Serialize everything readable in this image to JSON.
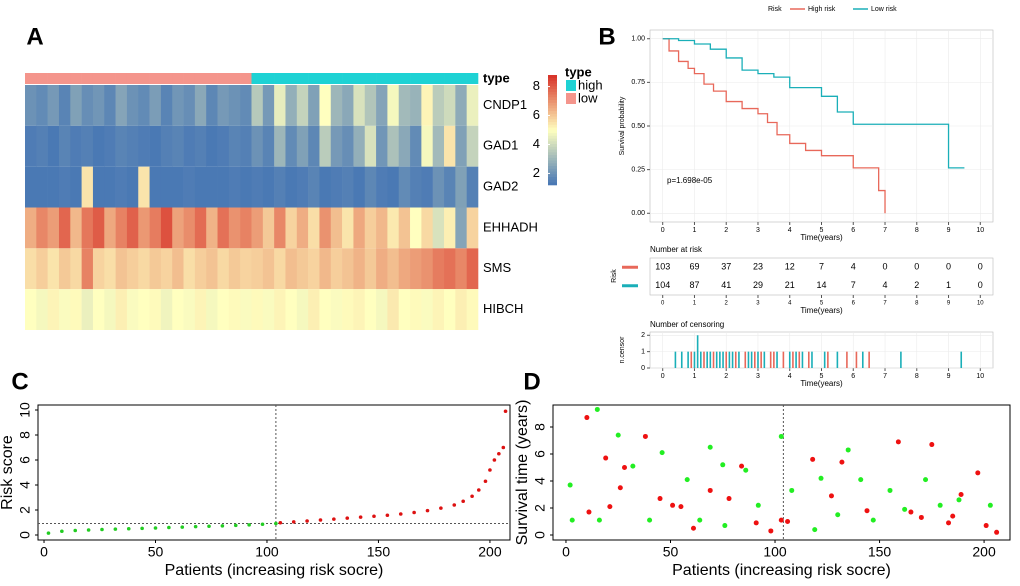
{
  "chart_data": [
    {
      "type": "heatmap",
      "panel": "A",
      "rows": [
        "CNDP1",
        "GAD1",
        "GAD2",
        "EHHADH",
        "SMS",
        "HIBCH"
      ],
      "values": [
        [
          2,
          1.8,
          2.2,
          1.6,
          2.4,
          1.9,
          2.1,
          1.7,
          2.5,
          2,
          1.8,
          2.3,
          1.6,
          2.1,
          1.9,
          2.6,
          1.7,
          2.2,
          2,
          1.8,
          3.5,
          2.2,
          4.5,
          2.8,
          3.8,
          2.4,
          5,
          3,
          2.6,
          4.2,
          3.4,
          2.5,
          4.8,
          3.1,
          2.9,
          5.2,
          3.6,
          4,
          2.7,
          4.6
        ],
        [
          1.4,
          1.5,
          1.3,
          1.6,
          1.4,
          1.5,
          1.3,
          1.4,
          1.6,
          1.5,
          1.4,
          1.3,
          1.5,
          1.6,
          1.4,
          1.5,
          1.3,
          1.4,
          1.6,
          1.5,
          2,
          1.6,
          3,
          1.8,
          2.4,
          1.7,
          3.6,
          2.2,
          1.9,
          2.8,
          4.2,
          2.1,
          3.3,
          2.6,
          1.8,
          4.8,
          3.1,
          5.5,
          2.4,
          3.8
        ],
        [
          1.3,
          1.3,
          1.3,
          1.4,
          1.3,
          5.5,
          1.3,
          1.3,
          1.4,
          1.3,
          5.5,
          1.3,
          1.3,
          1.3,
          1.4,
          1.3,
          1.3,
          1.3,
          1.4,
          1.3,
          1.4,
          1.3,
          1.5,
          1.3,
          1.4,
          1.6,
          1.3,
          1.4,
          1.5,
          1.3,
          1.7,
          1.4,
          1.3,
          1.8,
          1.5,
          1.4,
          2,
          1.6,
          2.4,
          1.5
        ],
        [
          6.5,
          7.2,
          6.8,
          7.8,
          6.3,
          7.5,
          8,
          6.6,
          7.3,
          7.9,
          6.9,
          7.4,
          8.2,
          6.7,
          7.1,
          7.7,
          6.4,
          7.6,
          7,
          7.3,
          6.8,
          6,
          7.2,
          5.8,
          6.5,
          5.6,
          7,
          6.2,
          5.5,
          6.6,
          5.9,
          6.3,
          5.4,
          6.1,
          5,
          5.7,
          4.2,
          5.3,
          2.5,
          5.8
        ],
        [
          5.6,
          5.9,
          5.5,
          6,
          5.7,
          7.3,
          5.8,
          5.6,
          6.1,
          5.9,
          5.7,
          6,
          5.8,
          6.2,
          5.6,
          5.9,
          6.1,
          5.7,
          6,
          5.8,
          5.9,
          6.1,
          5.7,
          6.2,
          6,
          5.8,
          6.3,
          5.9,
          6.1,
          6.4,
          6,
          6.5,
          6.2,
          6.6,
          6.8,
          7,
          7.4,
          7.6,
          7.2,
          7.8
        ],
        [
          5,
          4.8,
          5.2,
          4.9,
          5.1,
          4.6,
          5,
          4.8,
          5.3,
          4.9,
          5,
          5.1,
          4.7,
          5,
          4.9,
          5.2,
          4.8,
          5,
          5.1,
          4.9,
          5.1,
          4.9,
          5.2,
          5,
          4.8,
          5.3,
          5,
          4.9,
          5.1,
          5.2,
          5,
          4.8,
          5.4,
          5,
          5.1,
          4.9,
          5.2,
          5,
          5.3,
          5.1
        ]
      ],
      "annotation_title": "type",
      "column_types": [
        "low",
        "low",
        "low",
        "low",
        "low",
        "low",
        "low",
        "low",
        "low",
        "low",
        "low",
        "low",
        "low",
        "low",
        "low",
        "low",
        "low",
        "low",
        "low",
        "low",
        "high",
        "high",
        "high",
        "high",
        "high",
        "high",
        "high",
        "high",
        "high",
        "high",
        "high",
        "high",
        "high",
        "high",
        "high",
        "high",
        "high",
        "high",
        "high",
        "high"
      ],
      "type_levels": [
        {
          "name": "high",
          "color": "#1ED2D4"
        },
        {
          "name": "low",
          "color": "#F4958C"
        }
      ],
      "colorbar": {
        "lim": [
          1.2,
          8.8
        ],
        "ticks": [
          2,
          4,
          6,
          8
        ],
        "colors": [
          "#4575B4",
          "#FFFFBF",
          "#D73027"
        ]
      }
    },
    {
      "type": "line",
      "panel": "B",
      "step": true,
      "grid": true,
      "legend_title": "Risk",
      "series": [
        {
          "name": "High risk",
          "color": "#E8685A",
          "x": [
            0,
            0.2,
            0.5,
            0.8,
            1,
            1.3,
            1.6,
            2,
            2.5,
            3,
            3.3,
            3.6,
            4,
            4.5,
            5,
            6,
            6.7,
            6.8,
            7
          ],
          "values": [
            1,
            0.93,
            0.87,
            0.83,
            0.8,
            0.74,
            0.7,
            0.64,
            0.6,
            0.57,
            0.52,
            0.45,
            0.4,
            0.36,
            0.33,
            0.26,
            0.26,
            0.13,
            0
          ]
        },
        {
          "name": "Low risk",
          "color": "#1AAFB8",
          "x": [
            0,
            0.5,
            1,
            1.5,
            2,
            2.5,
            3,
            3.5,
            4,
            5,
            5.5,
            6,
            7,
            8,
            9,
            9.5
          ],
          "values": [
            1,
            0.99,
            0.97,
            0.94,
            0.89,
            0.82,
            0.8,
            0.78,
            0.72,
            0.67,
            0.58,
            0.51,
            0.51,
            0.51,
            0.26,
            0.26
          ]
        }
      ],
      "xlim": [
        -0.4,
        10.4
      ],
      "xticks": [
        0,
        1,
        2,
        3,
        4,
        5,
        6,
        7,
        8,
        9,
        10
      ],
      "ylim": [
        -0.05,
        1.05
      ],
      "yticks": [
        {
          "value": 0,
          "label": "0.00"
        },
        {
          "value": 0.25,
          "label": "0.25"
        },
        {
          "value": 0.5,
          "label": "0.50"
        },
        {
          "value": 0.75,
          "label": "0.75"
        },
        {
          "value": 1,
          "label": "1.00"
        }
      ],
      "xlabel": "Time(years)",
      "ylabel": "Survival probability",
      "annotation": "p=1.698e-05"
    },
    {
      "type": "table",
      "title": "Number at risk",
      "ylabel": "Risk",
      "xlabel": "Time(years)",
      "xlim": [
        -0.4,
        10.4
      ],
      "xticks": [
        0,
        1,
        2,
        3,
        4,
        5,
        6,
        7,
        8,
        9,
        10
      ],
      "rows": [
        {
          "color": "#E8685A",
          "values": [
            103,
            69,
            37,
            23,
            12,
            7,
            4,
            0,
            0,
            0,
            0
          ]
        },
        {
          "color": "#1AAFB8",
          "values": [
            104,
            87,
            41,
            29,
            21,
            14,
            7,
            4,
            2,
            1,
            0
          ]
        }
      ]
    },
    {
      "type": "bar",
      "title": "Number of censoring",
      "ylabel": "n.censor",
      "xlabel": "Time(years)",
      "grid": true,
      "xlim": [
        -0.4,
        10.4
      ],
      "xticks": [
        0,
        1,
        2,
        3,
        4,
        5,
        6,
        7,
        8,
        9,
        10
      ],
      "ylim": [
        0,
        2.2
      ],
      "yticks": [
        0,
        1,
        2
      ],
      "series": [
        {
          "color": "#E8685A",
          "x": [
            0.9,
            1.3,
            1.6,
            2.0,
            2.3,
            2.6,
            2.9,
            3.1,
            3.4,
            3.5,
            3.8,
            4.1,
            4.3,
            4.6,
            5.2,
            5.8,
            6.1,
            6.5
          ],
          "values": [
            1,
            1,
            1,
            1,
            1,
            1,
            1,
            1,
            1,
            1,
            1,
            1,
            1,
            1,
            1,
            1,
            1,
            1
          ]
        },
        {
          "color": "#1AAFB8",
          "x": [
            0.4,
            0.6,
            0.8,
            1.0,
            1.1,
            1.2,
            1.4,
            1.5,
            1.7,
            1.8,
            1.9,
            2.1,
            2.2,
            2.4,
            2.7,
            2.8,
            3.0,
            3.2,
            3.6,
            4.0,
            4.2,
            4.4,
            4.7,
            5.1,
            5.5,
            6.3,
            7.5,
            9.4
          ],
          "values": [
            1,
            1,
            1,
            1,
            2,
            1,
            1,
            1,
            1,
            1,
            1,
            1,
            1,
            1,
            1,
            1,
            1,
            1,
            1,
            1,
            1,
            1,
            1,
            1,
            1,
            1,
            1,
            1
          ]
        }
      ]
    },
    {
      "type": "scatter",
      "panel": "C",
      "xlabel": "Patients (increasing risk socre)",
      "ylabel": "Risk score",
      "xlim": [
        -2.7,
        209
      ],
      "xticks": [
        0,
        50,
        100,
        150,
        200
      ],
      "ylim": [
        -0.4,
        10.4
      ],
      "yticks": [
        0,
        2,
        4,
        6,
        8,
        10
      ],
      "vline": 104,
      "hline": 0.92,
      "series": [
        {
          "color": "#22CC22",
          "x": [
            2,
            8,
            14,
            20,
            26,
            32,
            38,
            44,
            50,
            56,
            62,
            68,
            74,
            80,
            86,
            92,
            98,
            104
          ],
          "values": [
            0.15,
            0.3,
            0.36,
            0.4,
            0.44,
            0.47,
            0.5,
            0.53,
            0.56,
            0.6,
            0.63,
            0.67,
            0.7,
            0.73,
            0.77,
            0.81,
            0.86,
            0.92
          ]
        },
        {
          "color": "#DD1111",
          "x": [
            106,
            112,
            118,
            124,
            130,
            136,
            142,
            148,
            154,
            160,
            166,
            172,
            178,
            184,
            188,
            192,
            195,
            198,
            200,
            202,
            204,
            206,
            207
          ],
          "values": [
            0.98,
            1.05,
            1.12,
            1.2,
            1.27,
            1.35,
            1.43,
            1.5,
            1.58,
            1.68,
            1.8,
            1.95,
            2.15,
            2.4,
            2.7,
            3.1,
            3.6,
            4.3,
            5.2,
            6,
            6.5,
            7,
            9.9
          ]
        }
      ]
    },
    {
      "type": "scatter",
      "panel": "D",
      "xlabel": "Patients (increasing risk socre)",
      "ylabel": "Survival time (years)",
      "xlim": [
        -6.2,
        212.4
      ],
      "xticks": [
        0,
        50,
        100,
        150,
        200
      ],
      "ylim": [
        -0.37,
        9.63
      ],
      "yticks": [
        0,
        2,
        4,
        6,
        8
      ],
      "vline": 104,
      "series": [
        {
          "color": "#22EE22",
          "x": [
            2,
            3,
            15,
            25,
            32,
            40,
            46,
            58,
            64,
            69,
            75,
            86,
            92,
            103,
            108,
            122,
            130,
            135,
            141,
            147,
            155,
            162,
            172,
            179,
            188,
            203,
            16,
            76,
            119
          ],
          "values": [
            3.7,
            1.1,
            9.3,
            7.4,
            5.1,
            1.1,
            6.1,
            4.1,
            1.1,
            6.5,
            5.2,
            4.8,
            2.2,
            7.3,
            3.3,
            4.2,
            1.5,
            6.3,
            4.1,
            1.1,
            3.3,
            1.9,
            4.1,
            2.2,
            2.6,
            2.2,
            1.1,
            0.7,
            0.4
          ]
        },
        {
          "color": "#EE1111",
          "x": [
            10,
            21,
            19,
            28,
            26,
            38,
            45,
            51,
            55,
            69,
            78,
            84,
            91,
            98,
            103,
            106,
            118,
            127,
            132,
            144,
            159,
            165,
            170,
            175,
            183,
            189,
            197,
            201,
            206,
            11,
            61,
            185
          ],
          "values": [
            8.7,
            2.1,
            5.7,
            5,
            3.5,
            7.3,
            2.7,
            2.2,
            2.1,
            3.3,
            2.7,
            5.1,
            0.9,
            0.3,
            1.1,
            1,
            5.6,
            2.9,
            5.4,
            1.8,
            6.9,
            1.7,
            1.3,
            6.7,
            0.9,
            3,
            4.6,
            0.7,
            0.2,
            1.7,
            0.5,
            1.4
          ]
        }
      ]
    }
  ]
}
